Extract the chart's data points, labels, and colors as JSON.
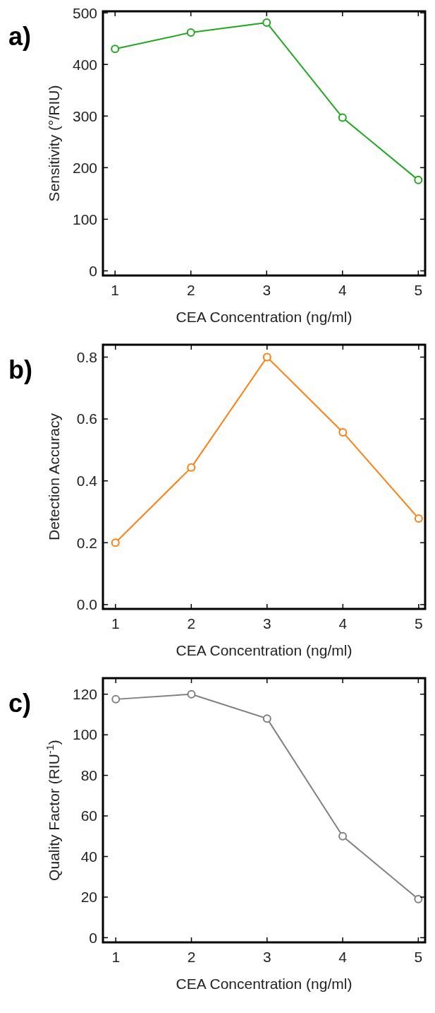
{
  "chart_data": [
    {
      "type": "line",
      "annotations": [
        "a)"
      ],
      "xlabel": "CEA Concentration (ng/ml)",
      "ylabel": "Sensitivity (°/RIU)",
      "x": [
        1,
        2,
        3,
        4,
        5
      ],
      "series": [
        {
          "color": "#1fa81f",
          "values": [
            430,
            462,
            481,
            297,
            176
          ]
        }
      ],
      "xlim": [
        0.84,
        5.09
      ],
      "ylim": [
        -9,
        503
      ],
      "xticks": [
        1,
        2,
        3,
        4,
        5
      ],
      "yticks": [
        0,
        100,
        200,
        300,
        400,
        500
      ],
      "marker": "circle",
      "line_style": "solid"
    },
    {
      "type": "line",
      "annotations": [
        "b)"
      ],
      "xlabel": "CEA Concentration (ng/ml)",
      "ylabel": "Detection Accuracy",
      "x": [
        1,
        2,
        3,
        4,
        5
      ],
      "series": [
        {
          "color": "#ff7f0e",
          "values": [
            0.2,
            0.443,
            0.8,
            0.557,
            0.278
          ]
        }
      ],
      "xlim": [
        0.835,
        5.085
      ],
      "ylim": [
        -0.014,
        0.84
      ],
      "xticks": [
        1,
        2,
        3,
        4,
        5
      ],
      "yticks": [
        {
          "value": 0,
          "label": "0.0"
        },
        0.2,
        0.4,
        0.6,
        0.8
      ],
      "marker": "circle",
      "line_style": "solid"
    },
    {
      "type": "line",
      "annotations": [
        "c)"
      ],
      "xlabel": "CEA Concentration (ng/ml)",
      "ylabel": "Quality Factor (RIU$^{-1}$)",
      "x": [
        1,
        2,
        3,
        4,
        5
      ],
      "series": [
        {
          "color": "#808080",
          "values": [
            117.5,
            120,
            108,
            50,
            19
          ]
        }
      ],
      "xlim": [
        0.83,
        5.09
      ],
      "ylim": [
        -2.3,
        127.9
      ],
      "xticks": [
        1,
        2,
        3,
        4,
        5
      ],
      "yticks": [
        0,
        20,
        40,
        60,
        80,
        100,
        120
      ],
      "marker": "circle",
      "line_style": "solid"
    }
  ]
}
